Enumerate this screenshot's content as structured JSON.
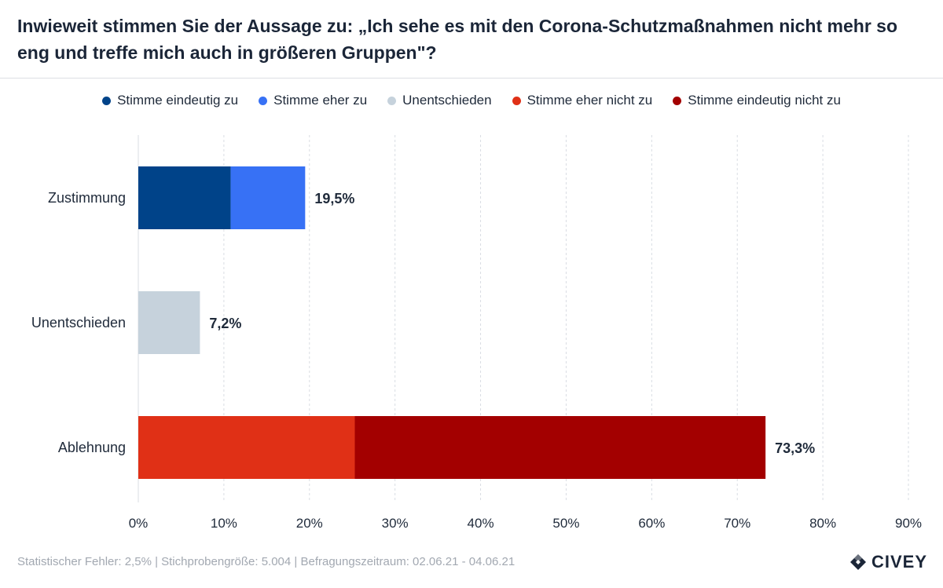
{
  "title": "Inwieweit stimmen Sie der Aussage zu: „Ich sehe es mit den Corona-Schutzmaßnahmen nicht mehr so eng und treffe mich auch in größeren Gruppen\"?",
  "legend": [
    {
      "label": "Stimme eindeutig zu",
      "color": "#004389"
    },
    {
      "label": "Stimme eher zu",
      "color": "#3771f5"
    },
    {
      "label": "Unentschieden",
      "color": "#c6d2dc"
    },
    {
      "label": "Stimme eher nicht zu",
      "color": "#e03016"
    },
    {
      "label": "Stimme eindeutig nicht zu",
      "color": "#a30000"
    }
  ],
  "chart_data": {
    "type": "bar",
    "orientation": "horizontal",
    "stacked": true,
    "categories": [
      "Zustimmung",
      "Unentschieden",
      "Ablehnung"
    ],
    "series": [
      {
        "name": "Stimme eindeutig zu",
        "values": [
          10.8,
          0,
          0
        ],
        "color": "#004389"
      },
      {
        "name": "Stimme eher zu",
        "values": [
          8.7,
          0,
          0
        ],
        "color": "#3771f5"
      },
      {
        "name": "Unentschieden",
        "values": [
          0,
          7.2,
          0
        ],
        "color": "#c6d2dc"
      },
      {
        "name": "Stimme eher nicht zu",
        "values": [
          0,
          0,
          25.3
        ],
        "color": "#e03016"
      },
      {
        "name": "Stimme eindeutig nicht zu",
        "values": [
          0,
          0,
          48.0
        ],
        "color": "#a30000"
      }
    ],
    "totals": [
      19.5,
      7.2,
      73.3
    ],
    "total_labels": [
      "19,5%",
      "7,2%",
      "73,3%"
    ],
    "xlim": [
      0,
      90
    ],
    "xticks": [
      0,
      10,
      20,
      30,
      40,
      50,
      60,
      70,
      80,
      90
    ],
    "xtick_labels": [
      "0%",
      "10%",
      "20%",
      "30%",
      "40%",
      "50%",
      "60%",
      "70%",
      "80%",
      "90%"
    ],
    "grid": true,
    "xlabel": "",
    "ylabel": ""
  },
  "footer": "Statistischer Fehler: 2,5% | Stichprobengröße: 5.004 | Befragungszeitraum: 02.06.21 - 04.06.21",
  "brand": "CIVEY"
}
